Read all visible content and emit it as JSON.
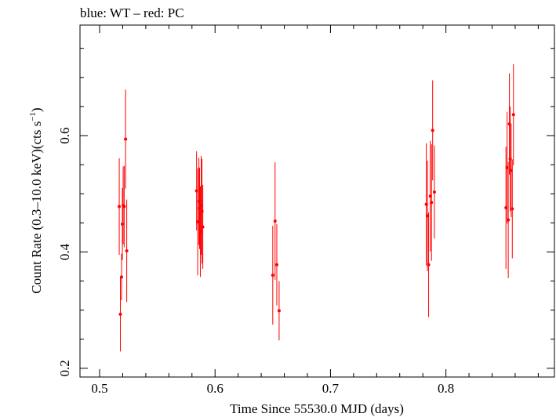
{
  "chart_data": {
    "type": "scatter",
    "title": "blue: WT – red: PC",
    "xlabel": "Time Since 55530.0 MJD (days)",
    "ylabel_main": "Count Rate (0.3–10.0 keV)(cts s",
    "ylabel_sup": "−1",
    "ylabel_close": ")",
    "xlim": [
      0.483,
      0.894
    ],
    "ylim": [
      0.185,
      0.79
    ],
    "x_ticks": [
      {
        "value": 0.5,
        "label": "0.5"
      },
      {
        "value": 0.6,
        "label": "0.6"
      },
      {
        "value": 0.7,
        "label": "0.7"
      },
      {
        "value": 0.8,
        "label": "0.8"
      }
    ],
    "y_ticks": [
      {
        "value": 0.2,
        "label": "0.2"
      },
      {
        "value": 0.4,
        "label": "0.4"
      },
      {
        "value": 0.6,
        "label": "0.6"
      }
    ],
    "series": [
      {
        "name": "PC",
        "color": "#ff0000",
        "points": [
          {
            "x": 0.517,
            "y": 0.478,
            "err": 0.083
          },
          {
            "x": 0.518,
            "y": 0.293,
            "err": 0.064
          },
          {
            "x": 0.519,
            "y": 0.357,
            "err": 0.04
          },
          {
            "x": 0.5197,
            "y": 0.448,
            "err": 0.062
          },
          {
            "x": 0.5204,
            "y": 0.48,
            "err": 0.067
          },
          {
            "x": 0.5213,
            "y": 0.478,
            "err": 0.07
          },
          {
            "x": 0.5225,
            "y": 0.594,
            "err": 0.085
          },
          {
            "x": 0.5235,
            "y": 0.402,
            "err": 0.088
          },
          {
            "x": 0.584,
            "y": 0.505,
            "err": 0.068
          },
          {
            "x": 0.585,
            "y": 0.452,
            "err": 0.092
          },
          {
            "x": 0.586,
            "y": 0.487,
            "err": 0.075
          },
          {
            "x": 0.5866,
            "y": 0.475,
            "err": 0.07
          },
          {
            "x": 0.5873,
            "y": 0.435,
            "err": 0.078
          },
          {
            "x": 0.588,
            "y": 0.48,
            "err": 0.085
          },
          {
            "x": 0.5887,
            "y": 0.47,
            "err": 0.09
          },
          {
            "x": 0.5894,
            "y": 0.443,
            "err": 0.072
          },
          {
            "x": 0.65,
            "y": 0.36,
            "err": 0.085
          },
          {
            "x": 0.652,
            "y": 0.453,
            "err": 0.101
          },
          {
            "x": 0.6535,
            "y": 0.378,
            "err": 0.07
          },
          {
            "x": 0.6555,
            "y": 0.299,
            "err": 0.051
          },
          {
            "x": 0.783,
            "y": 0.482,
            "err": 0.105
          },
          {
            "x": 0.784,
            "y": 0.462,
            "err": 0.095
          },
          {
            "x": 0.785,
            "y": 0.378,
            "err": 0.09
          },
          {
            "x": 0.7865,
            "y": 0.496,
            "err": 0.095
          },
          {
            "x": 0.7875,
            "y": 0.485,
            "err": 0.1
          },
          {
            "x": 0.7885,
            "y": 0.609,
            "err": 0.086
          },
          {
            "x": 0.79,
            "y": 0.503,
            "err": 0.08
          },
          {
            "x": 0.852,
            "y": 0.476,
            "err": 0.105
          },
          {
            "x": 0.853,
            "y": 0.545,
            "err": 0.096
          },
          {
            "x": 0.854,
            "y": 0.455,
            "err": 0.1
          },
          {
            "x": 0.855,
            "y": 0.62,
            "err": 0.087
          },
          {
            "x": 0.8557,
            "y": 0.56,
            "err": 0.09
          },
          {
            "x": 0.8565,
            "y": 0.54,
            "err": 0.08
          },
          {
            "x": 0.8575,
            "y": 0.474,
            "err": 0.085
          },
          {
            "x": 0.8585,
            "y": 0.636,
            "err": 0.087
          }
        ]
      }
    ]
  }
}
